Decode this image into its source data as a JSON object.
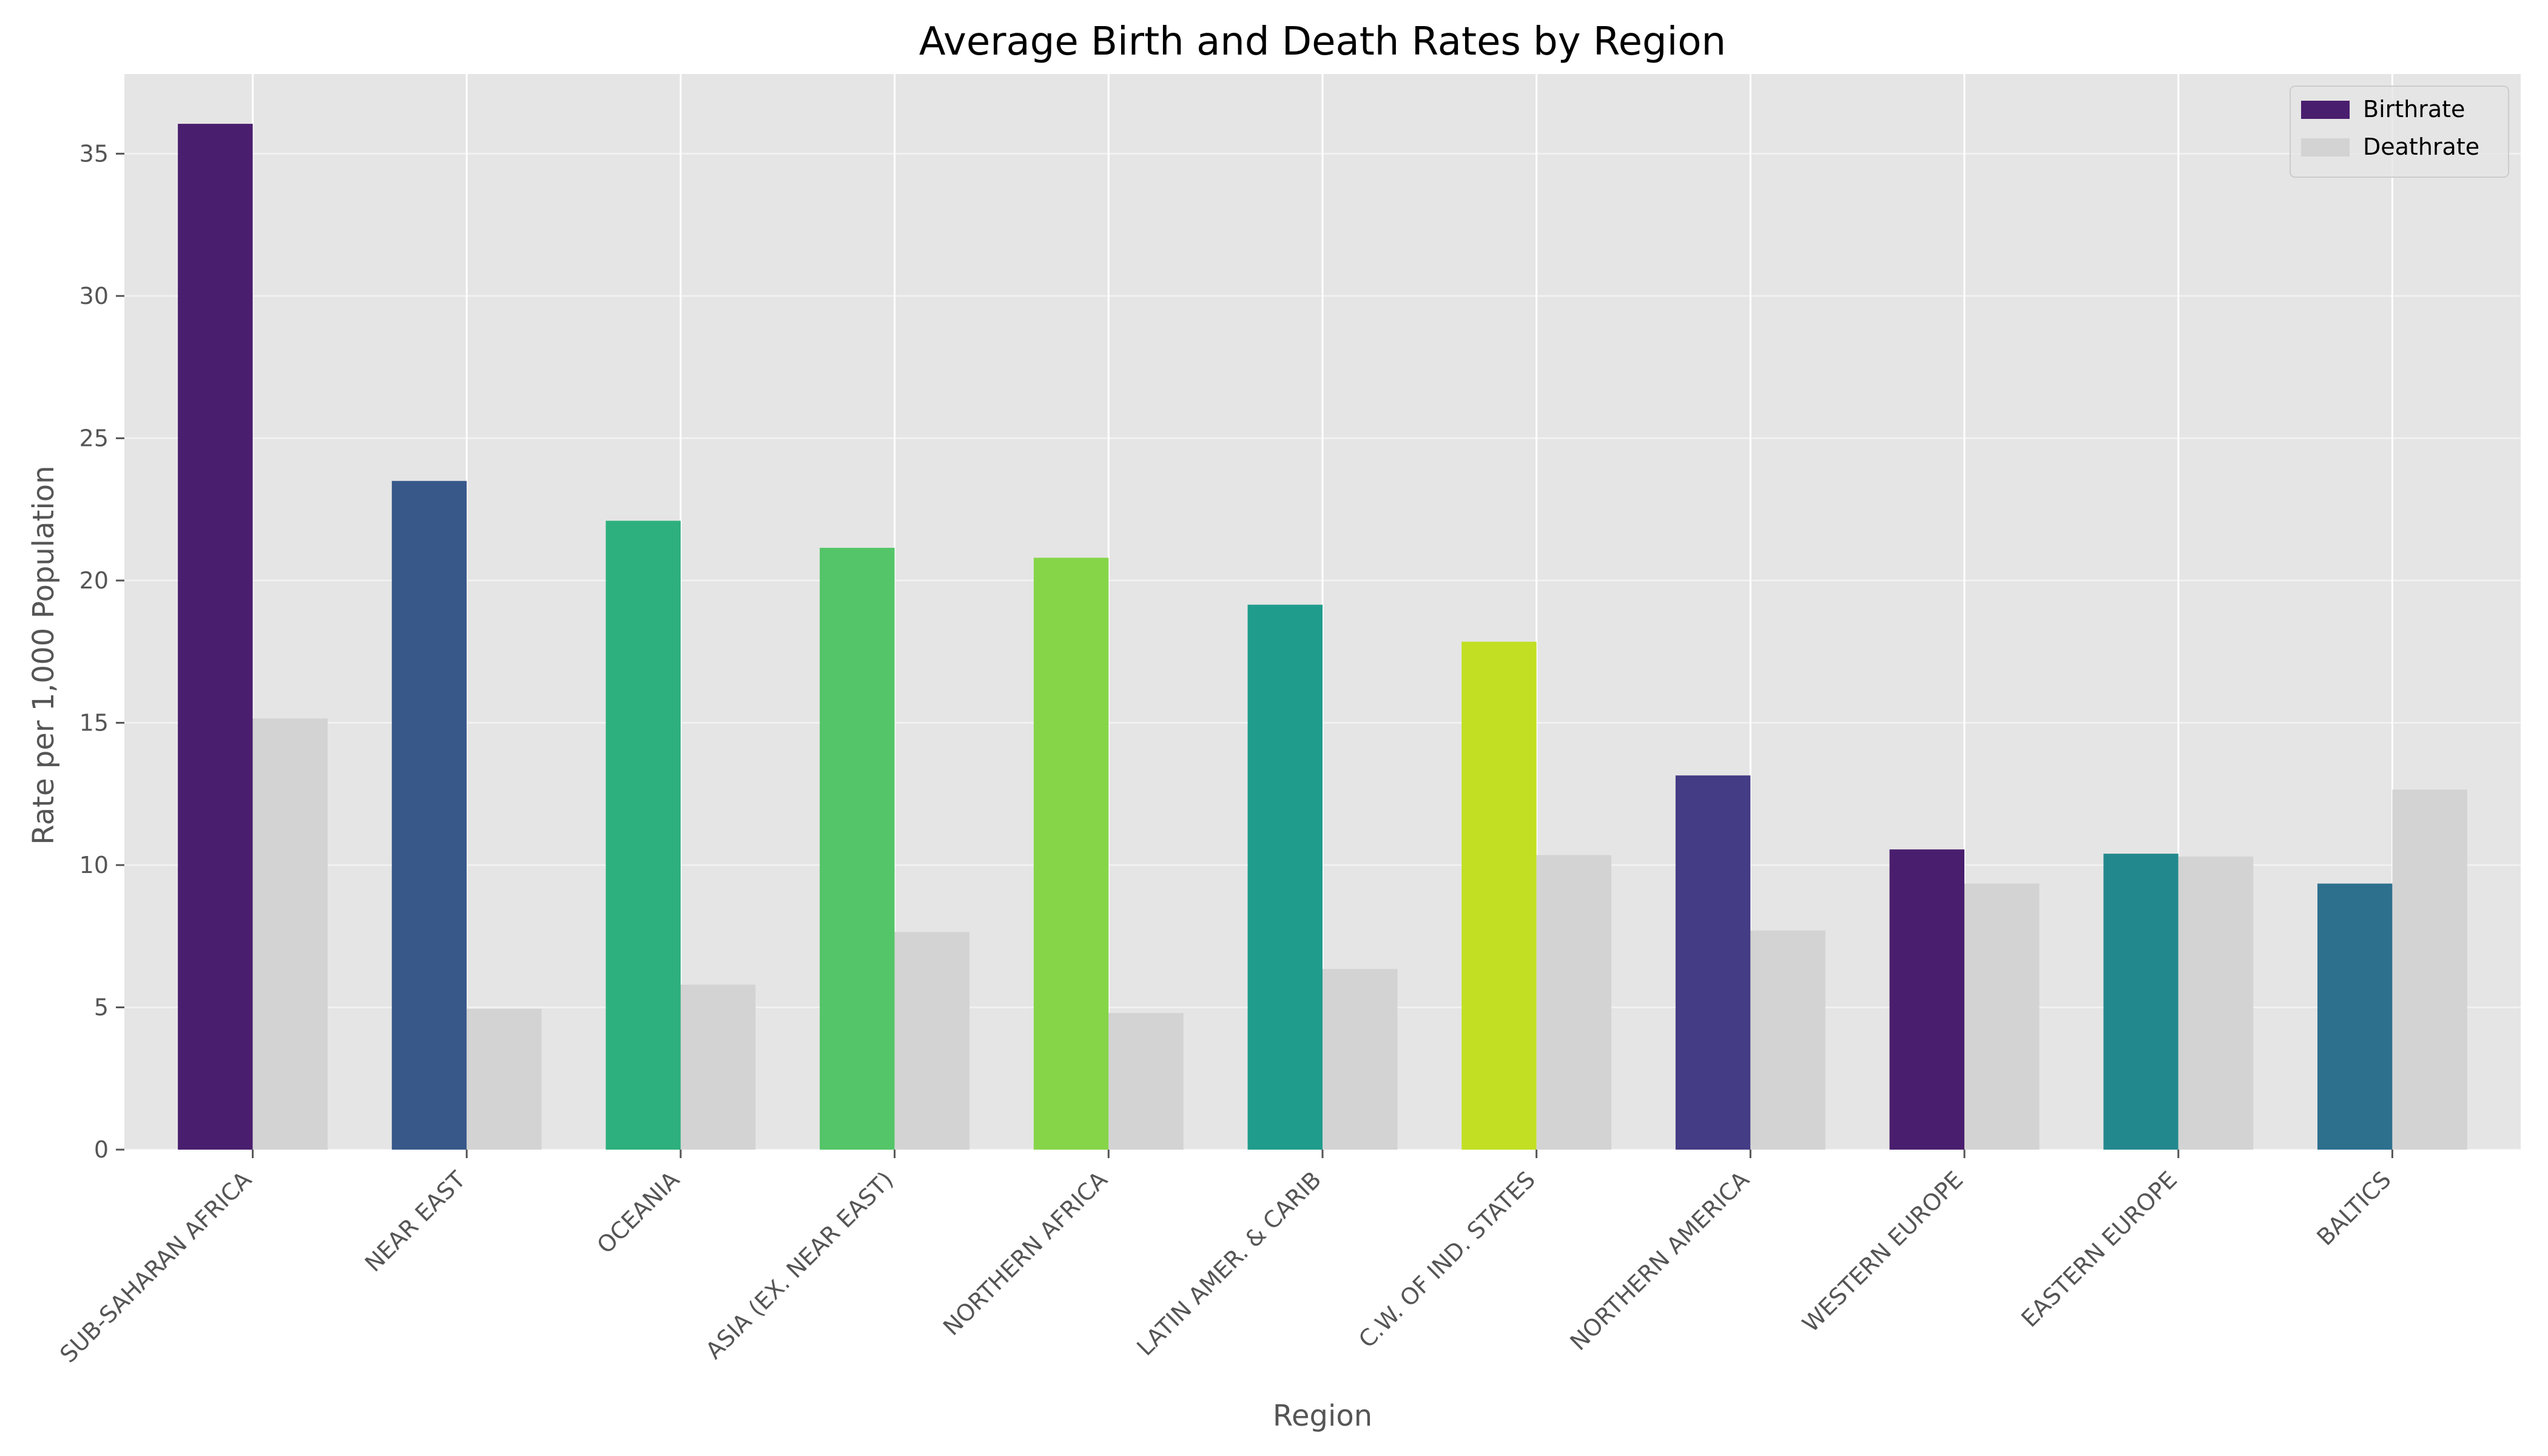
{
  "chart_data": {
    "type": "bar",
    "title": "Average Birth and Death Rates by Region",
    "xlabel": "Region",
    "ylabel": "Rate per 1,000 Population",
    "ylim": [
      0,
      37.8
    ],
    "yticks": [
      0,
      5,
      10,
      15,
      20,
      25,
      30,
      35
    ],
    "grid": true,
    "legend_position": "top-right",
    "categories": [
      "SUB-SAHARAN AFRICA",
      "NEAR EAST",
      "OCEANIA",
      "ASIA (EX. NEAR EAST)",
      "NORTHERN AFRICA",
      "LATIN AMER. & CARIB",
      "C.W. OF IND. STATES",
      "NORTHERN AMERICA",
      "WESTERN EUROPE",
      "EASTERN EUROPE",
      "BALTICS"
    ],
    "series": [
      {
        "name": "Birthrate",
        "legend_color": "#4a1e6e",
        "colors": [
          "#4a1e6e",
          "#38588a",
          "#2db07d",
          "#54c568",
          "#86d549",
          "#1f9c8c",
          "#c2df23",
          "#443c84",
          "#4a1e6e",
          "#23888e",
          "#2d708e"
        ],
        "values": [
          36.05,
          23.5,
          22.1,
          21.15,
          20.8,
          19.15,
          17.85,
          13.15,
          10.55,
          10.4,
          9.35
        ]
      },
      {
        "name": "Deathrate",
        "legend_color": "#d3d3d3",
        "colors": [
          "#d3d3d3",
          "#d3d3d3",
          "#d3d3d3",
          "#d3d3d3",
          "#d3d3d3",
          "#d3d3d3",
          "#d3d3d3",
          "#d3d3d3",
          "#d3d3d3",
          "#d3d3d3",
          "#d3d3d3"
        ],
        "values": [
          15.15,
          4.95,
          5.8,
          7.65,
          4.8,
          6.35,
          10.35,
          7.7,
          9.35,
          10.3,
          12.65
        ]
      }
    ]
  }
}
